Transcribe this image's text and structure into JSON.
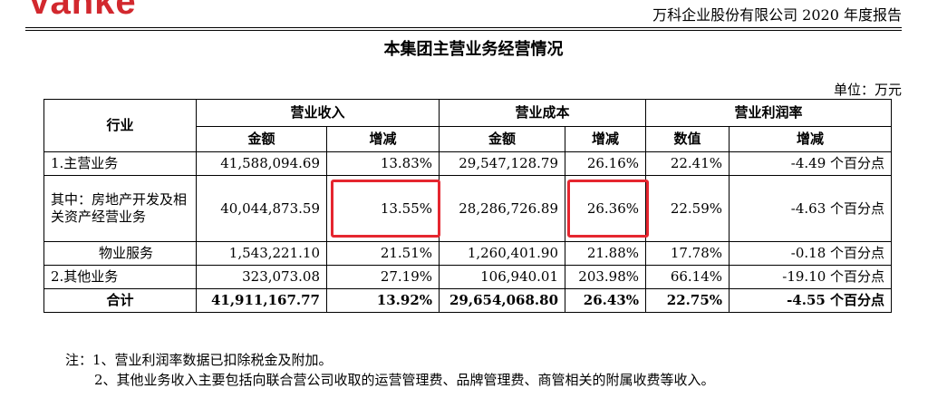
{
  "header": {
    "logo_text": "Vanke",
    "report_title": "万科企业股份有限公司 2020 年度报告",
    "brand_color": "#d2282e"
  },
  "title": "本集团主营业务经营情况",
  "unit": "单位：万元",
  "table": {
    "headers": {
      "industry": "行业",
      "revenue": "营业收入",
      "cost": "营业成本",
      "margin": "营业利润率",
      "amount": "金额",
      "change": "增减",
      "value": "数值"
    },
    "rows": [
      {
        "label": "1.主营业务",
        "rev": "41,588,094.69",
        "rev_chg": "13.83%",
        "cost": "29,547,128.79",
        "cost_chg": "26.16%",
        "margin": "22.41%",
        "margin_chg": "-4.49 个百分点"
      },
      {
        "label": "其中：房地产开发及相关资产经营业务",
        "rev": "40,044,873.59",
        "rev_chg": "13.55%",
        "cost": "28,286,726.89",
        "cost_chg": "26.36%",
        "margin": "22.59%",
        "margin_chg": "-4.63 个百分点"
      },
      {
        "label": "物业服务",
        "rev": "1,543,221.10",
        "rev_chg": "21.51%",
        "cost": "1,260,401.90",
        "cost_chg": "21.88%",
        "margin": "17.78%",
        "margin_chg": "-0.18 个百分点"
      },
      {
        "label": "2.其他业务",
        "rev": "323,073.08",
        "rev_chg": "27.19%",
        "cost": "106,940.01",
        "cost_chg": "203.98%",
        "margin": "66.14%",
        "margin_chg": "-19.10 个百分点"
      },
      {
        "label": "合计",
        "rev": "41,911,167.77",
        "rev_chg": "13.92%",
        "cost": "29,654,068.80",
        "cost_chg": "26.43%",
        "margin": "22.75%",
        "margin_chg": "-4.55 个百分点"
      }
    ],
    "highlight_color": "#e5262f"
  },
  "notes": [
    "注：1、营业利润率数据已扣除税金及附加。",
    "2、其他业务收入主要包括向联合营公司收取的运营管理费、品牌管理费、商管相关的附属收费等收入。"
  ]
}
